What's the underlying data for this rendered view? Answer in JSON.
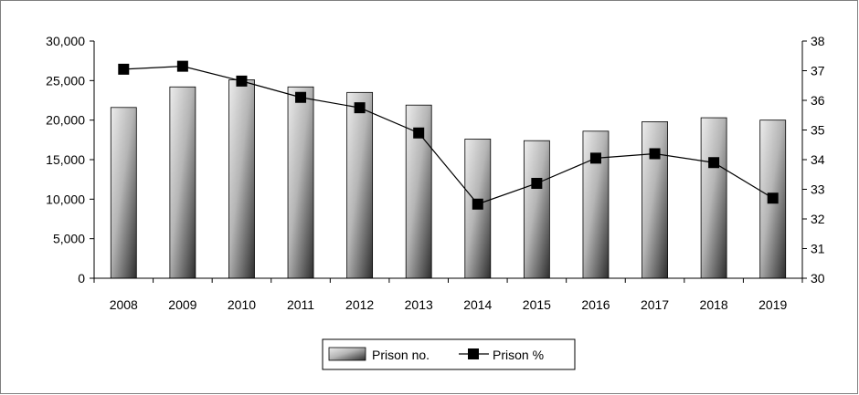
{
  "chart_data": {
    "type": "bar",
    "categories": [
      "2008",
      "2009",
      "2010",
      "2011",
      "2012",
      "2013",
      "2014",
      "2015",
      "2016",
      "2017",
      "2018",
      "2019"
    ],
    "series": [
      {
        "name": "Prison no.",
        "type": "bar",
        "axis": "left",
        "values": [
          21600,
          24200,
          25100,
          24200,
          23500,
          21900,
          17600,
          17400,
          18600,
          19800,
          20300,
          20000
        ]
      },
      {
        "name": "Prison %",
        "type": "line",
        "axis": "right",
        "values": [
          37.05,
          37.15,
          36.65,
          36.1,
          35.75,
          34.9,
          32.5,
          33.2,
          34.05,
          34.2,
          33.9,
          32.7
        ]
      }
    ],
    "y_left": {
      "ylim": [
        0,
        30000
      ],
      "ticks": [
        "0",
        "5,000",
        "10,000",
        "15,000",
        "20,000",
        "25,000",
        "30,000"
      ]
    },
    "y_right": {
      "ylim": [
        30,
        38
      ],
      "ticks": [
        "30",
        "31",
        "32",
        "33",
        "34",
        "35",
        "36",
        "37",
        "38"
      ]
    },
    "grid": false,
    "legend": "bottom-center",
    "colors": {
      "bar_light": "#e6e6e6",
      "bar_dark": "#3a3a3a",
      "line": "#000000",
      "marker": "#000000",
      "axis": "#000000"
    }
  }
}
